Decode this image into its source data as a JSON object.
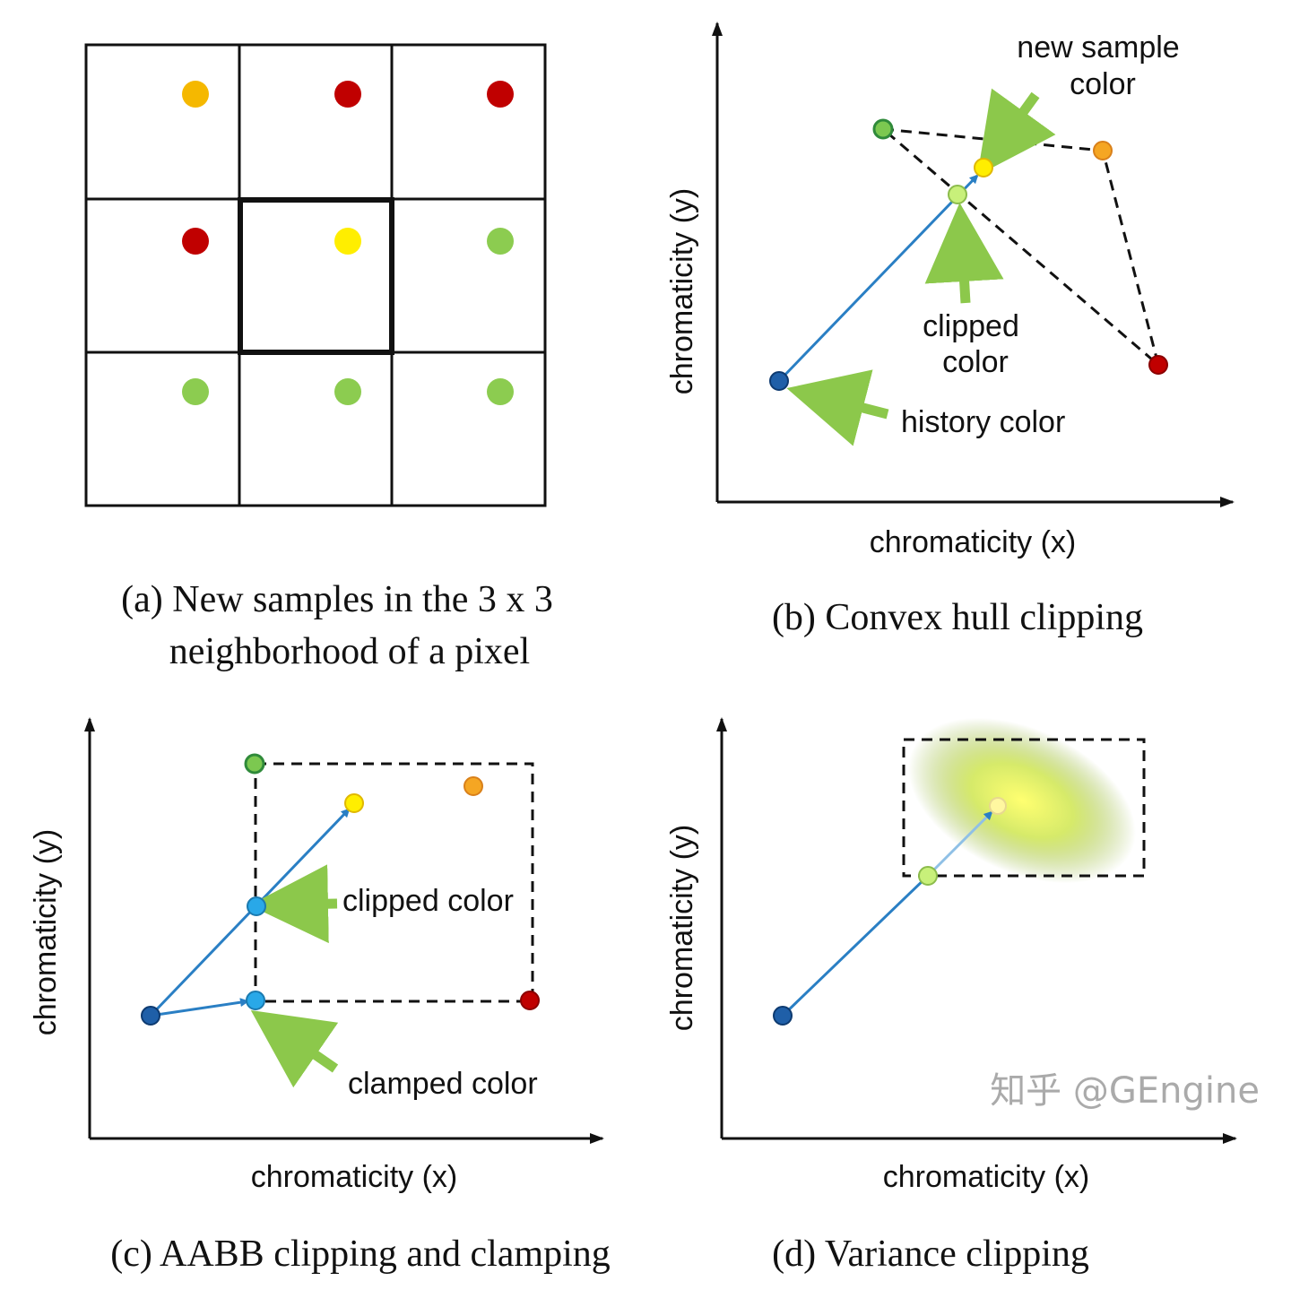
{
  "panel_a": {
    "caption_line1": "(a) New samples in the 3 x 3",
    "caption_line2": "neighborhood of a pixel",
    "grid_colors": [
      [
        "#f5b800",
        "#c00000",
        "#c00000"
      ],
      [
        "#c00000",
        "#ffee00",
        "#8ccc50"
      ],
      [
        "#8ccc50",
        "#8ccc50",
        "#8ccc50"
      ]
    ]
  },
  "panel_b": {
    "caption": "(b) Convex hull clipping",
    "xlabel": "chromaticity (x)",
    "ylabel": "chromaticity (y)",
    "label_new_sample_1": "new sample",
    "label_new_sample_2": "color",
    "label_clipped_1": "clipped",
    "label_clipped_2": "color",
    "label_history": "history color"
  },
  "panel_c": {
    "caption": "(c) AABB clipping and clamping",
    "xlabel": "chromaticity (x)",
    "ylabel": "chromaticity (y)",
    "label_clipped": "clipped color",
    "label_clamped": "clamped color"
  },
  "panel_d": {
    "caption": "(d) Variance clipping",
    "xlabel": "chromaticity (x)",
    "ylabel": "chromaticity (y)"
  },
  "watermark": "知乎 @GEngine",
  "colors": {
    "green": "#6abf4b",
    "light_green": "#c8f07a",
    "orange": "#f5a623",
    "red": "#c00000",
    "yellow": "#ffee00",
    "blue": "#1f5fa8",
    "cyan": "#29a8e8",
    "arrow_green": "#8cc84b",
    "line_blue": "#2a7fc4"
  }
}
